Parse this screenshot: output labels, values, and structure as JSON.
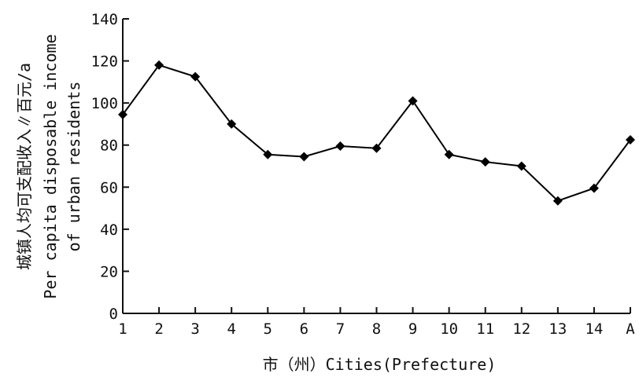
{
  "chart_data": {
    "type": "line",
    "categories": [
      "1",
      "2",
      "3",
      "4",
      "5",
      "6",
      "7",
      "8",
      "9",
      "10",
      "11",
      "12",
      "13",
      "14",
      "A"
    ],
    "series": [
      {
        "values": [
          94.5,
          118,
          112.5,
          90,
          75.5,
          74.5,
          79.5,
          78.5,
          101,
          75.5,
          72,
          70,
          53.5,
          59.5,
          82.5
        ],
        "color": "#000000",
        "marker": "diamond"
      }
    ],
    "xlabel": "市（州）Cities(Prefecture)",
    "ylabel_lines": [
      "城镇人均可支配收入∥百元/a",
      "Per capita disposable income",
      "of urban residents"
    ],
    "ylim": [
      0,
      140
    ],
    "yticks": [
      0,
      20,
      40,
      60,
      80,
      100,
      120,
      140
    ],
    "grid": false,
    "legend": "none"
  }
}
